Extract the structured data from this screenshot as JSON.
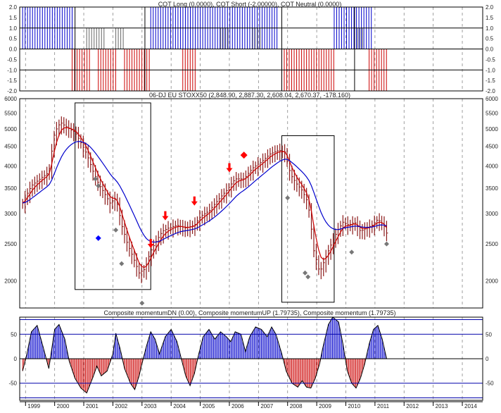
{
  "chart_data": [
    {
      "type": "bar",
      "title": "COT Long (0.0000), COT Short (-2.00000), COT Neutral (0.0000)",
      "ylim": [
        -2.0,
        2.0
      ],
      "y_ticks": [
        "2.0",
        "1.5",
        "1.0",
        "0.5",
        "0.0",
        "-0.5",
        "-1.0",
        "-1.5",
        "-2.0"
      ],
      "y_tick_values": [
        2.0,
        1.5,
        1.0,
        0.5,
        0.0,
        -0.5,
        -1.0,
        -1.5,
        -2.0
      ],
      "reference_lines": [
        1.0,
        -1.0
      ],
      "highlight_boxes": [
        [
          2000.7,
          2003.1
        ],
        [
          2007.8,
          2010.3
        ]
      ],
      "series": [
        {
          "name": "COT Long",
          "color": "#0000cc",
          "value": 2.0,
          "ranges": [
            [
              1998.9,
              2000.6
            ],
            [
              2003.3,
              2007.7
            ],
            [
              2009.6,
              2010.9
            ]
          ]
        },
        {
          "name": "COT Short",
          "color": "#cc0000",
          "value": -2.0,
          "ranges": [
            [
              2000.6,
              2001.2
            ],
            [
              2001.5,
              2002.1
            ],
            [
              2002.4,
              2003.3
            ],
            [
              2004.4,
              2004.9
            ],
            [
              2007.8,
              2009.6
            ],
            [
              2010.8,
              2011.4
            ]
          ]
        },
        {
          "name": "COT Neutral",
          "color": "#666666",
          "value": 1.0,
          "ranges": [
            [
              2001.1,
              2001.7
            ],
            [
              2002.1,
              2002.4
            ],
            [
              2005.7,
              2006.0
            ],
            [
              2006.8,
              2007.1
            ],
            [
              2010.4,
              2010.6
            ]
          ]
        }
      ]
    },
    {
      "type": "line",
      "title": "06-DJ EU STOXX50 (2,848.90, 2,887.30, 2,608.04, 2,670.37, -178.160)",
      "ylim": [
        1700,
        6000
      ],
      "scale": "log",
      "y_ticks": [
        "6000",
        "5500",
        "5000",
        "4500",
        "4000",
        "3500",
        "3000",
        "2500",
        "2000"
      ],
      "y_tick_values": [
        6000,
        5500,
        5000,
        4500,
        4000,
        3500,
        3000,
        2500,
        2000
      ],
      "x_range": [
        1998.8,
        2014.7
      ],
      "price_points": [
        [
          1998.9,
          3200
        ],
        [
          1999.2,
          3550
        ],
        [
          1999.5,
          3700
        ],
        [
          1999.8,
          3850
        ],
        [
          2000.0,
          4900
        ],
        [
          2000.2,
          5200
        ],
        [
          2000.5,
          5000
        ],
        [
          2000.7,
          4900
        ],
        [
          2000.9,
          4600
        ],
        [
          2001.1,
          4300
        ],
        [
          2001.3,
          3900
        ],
        [
          2001.5,
          3600
        ],
        [
          2001.7,
          3400
        ],
        [
          2001.9,
          3200
        ],
        [
          2002.1,
          3300
        ],
        [
          2002.3,
          2800
        ],
        [
          2002.5,
          2500
        ],
        [
          2002.7,
          2300
        ],
        [
          2002.9,
          2100
        ],
        [
          2003.1,
          2150
        ],
        [
          2003.3,
          2400
        ],
        [
          2003.5,
          2550
        ],
        [
          2003.7,
          2700
        ],
        [
          2003.9,
          2750
        ],
        [
          2004.2,
          2800
        ],
        [
          2004.5,
          2750
        ],
        [
          2004.8,
          2800
        ],
        [
          2005.0,
          2950
        ],
        [
          2005.3,
          3050
        ],
        [
          2005.6,
          3250
        ],
        [
          2005.9,
          3450
        ],
        [
          2006.2,
          3700
        ],
        [
          2006.5,
          3700
        ],
        [
          2006.8,
          3950
        ],
        [
          2007.1,
          4100
        ],
        [
          2007.4,
          4300
        ],
        [
          2007.7,
          4400
        ],
        [
          2007.9,
          4350
        ],
        [
          2008.1,
          3800
        ],
        [
          2008.3,
          3600
        ],
        [
          2008.5,
          3450
        ],
        [
          2008.7,
          3200
        ],
        [
          2008.9,
          2400
        ],
        [
          2009.1,
          2100
        ],
        [
          2009.3,
          2300
        ],
        [
          2009.5,
          2500
        ],
        [
          2009.7,
          2700
        ],
        [
          2009.9,
          2850
        ],
        [
          2010.1,
          2800
        ],
        [
          2010.3,
          2850
        ],
        [
          2010.5,
          2700
        ],
        [
          2010.7,
          2750
        ],
        [
          2010.9,
          2800
        ],
        [
          2011.1,
          2900
        ],
        [
          2011.3,
          2800
        ],
        [
          2011.4,
          2670
        ]
      ],
      "buy_arrows": [
        [
          2003.3,
          2470
        ],
        [
          2003.8,
          2920
        ],
        [
          2004.8,
          3190
        ],
        [
          2006.0,
          3900
        ]
      ],
      "sell_marker": [
        2006.5,
        4270
      ],
      "blue_marker": [
        2001.5,
        2590
      ],
      "grey_markers": [
        [
          2001.4,
          3700
        ],
        [
          2001.5,
          3550
        ],
        [
          2002.1,
          2720
        ],
        [
          2002.3,
          2220
        ],
        [
          2003.0,
          1750
        ],
        [
          2008.0,
          3300
        ],
        [
          2008.6,
          2100
        ],
        [
          2008.7,
          2050
        ],
        [
          2010.2,
          2380
        ],
        [
          2011.4,
          2500
        ]
      ],
      "highlight_boxes": [
        {
          "x": [
            2000.7,
            2003.3
          ],
          "y": [
            1900,
            5850
          ]
        },
        {
          "x": [
            2007.8,
            2009.6
          ],
          "y": [
            1760,
            4800
          ]
        }
      ],
      "series": [
        {
          "name": "",
          "color": "#cc0000",
          "smooth": 0.4
        },
        {
          "name": "",
          "color": "#0000cc",
          "smooth": 0.12
        }
      ]
    },
    {
      "type": "area",
      "title": "Composite momentumDN (0.00), Composite momentumUP (1.79735), Composite momentum (1.79735)",
      "ylim": [
        -85,
        85
      ],
      "y_ticks": [
        "50",
        "0",
        "-50"
      ],
      "y_tick_values": [
        50,
        0,
        -50
      ],
      "reference_lines": [
        80,
        50,
        0,
        -50,
        -80
      ],
      "x_tick_labels": [
        "1999",
        "2000",
        "2001",
        "2002",
        "2003",
        "2004",
        "2005",
        "2006",
        "2007",
        "2008",
        "2009",
        "2010",
        "2011",
        "2012",
        "2013",
        "2014"
      ],
      "x_tick_values": [
        1999,
        2000,
        2001,
        2002,
        2003,
        2004,
        2005,
        2006,
        2007,
        2008,
        2009,
        2010,
        2011,
        2012,
        2013,
        2014
      ],
      "points": [
        [
          1998.9,
          -25
        ],
        [
          1999.05,
          10
        ],
        [
          1999.2,
          55
        ],
        [
          1999.4,
          68
        ],
        [
          1999.6,
          25
        ],
        [
          1999.8,
          -20
        ],
        [
          2000.0,
          60
        ],
        [
          2000.15,
          70
        ],
        [
          2000.35,
          40
        ],
        [
          2000.5,
          -5
        ],
        [
          2000.7,
          -40
        ],
        [
          2000.9,
          -60
        ],
        [
          2001.1,
          -70
        ],
        [
          2001.3,
          -40
        ],
        [
          2001.45,
          -15
        ],
        [
          2001.6,
          -35
        ],
        [
          2001.8,
          -25
        ],
        [
          2002.0,
          10
        ],
        [
          2002.1,
          52
        ],
        [
          2002.25,
          20
        ],
        [
          2002.4,
          -20
        ],
        [
          2002.6,
          -50
        ],
        [
          2002.75,
          -63
        ],
        [
          2002.9,
          -35
        ],
        [
          2003.0,
          -10
        ],
        [
          2003.15,
          25
        ],
        [
          2003.3,
          55
        ],
        [
          2003.45,
          40
        ],
        [
          2003.6,
          10
        ],
        [
          2003.8,
          45
        ],
        [
          2004.0,
          60
        ],
        [
          2004.2,
          35
        ],
        [
          2004.35,
          0
        ],
        [
          2004.5,
          -35
        ],
        [
          2004.65,
          -55
        ],
        [
          2004.8,
          -30
        ],
        [
          2004.95,
          10
        ],
        [
          2005.1,
          45
        ],
        [
          2005.3,
          60
        ],
        [
          2005.5,
          40
        ],
        [
          2005.7,
          55
        ],
        [
          2005.9,
          45
        ],
        [
          2006.05,
          35
        ],
        [
          2006.2,
          55
        ],
        [
          2006.4,
          50
        ],
        [
          2006.55,
          15
        ],
        [
          2006.7,
          45
        ],
        [
          2006.9,
          65
        ],
        [
          2007.1,
          60
        ],
        [
          2007.3,
          45
        ],
        [
          2007.45,
          65
        ],
        [
          2007.6,
          50
        ],
        [
          2007.8,
          10
        ],
        [
          2007.95,
          -25
        ],
        [
          2008.15,
          -50
        ],
        [
          2008.35,
          -58
        ],
        [
          2008.5,
          -45
        ],
        [
          2008.65,
          -58
        ],
        [
          2008.8,
          -60
        ],
        [
          2008.95,
          -40
        ],
        [
          2009.1,
          -10
        ],
        [
          2009.2,
          20
        ],
        [
          2009.4,
          70
        ],
        [
          2009.55,
          85
        ],
        [
          2009.75,
          75
        ],
        [
          2009.9,
          30
        ],
        [
          2010.05,
          -25
        ],
        [
          2010.2,
          -50
        ],
        [
          2010.35,
          -60
        ],
        [
          2010.5,
          -40
        ],
        [
          2010.65,
          -10
        ],
        [
          2010.8,
          30
        ],
        [
          2010.95,
          60
        ],
        [
          2011.1,
          68
        ],
        [
          2011.25,
          40
        ],
        [
          2011.4,
          0
        ]
      ]
    }
  ]
}
